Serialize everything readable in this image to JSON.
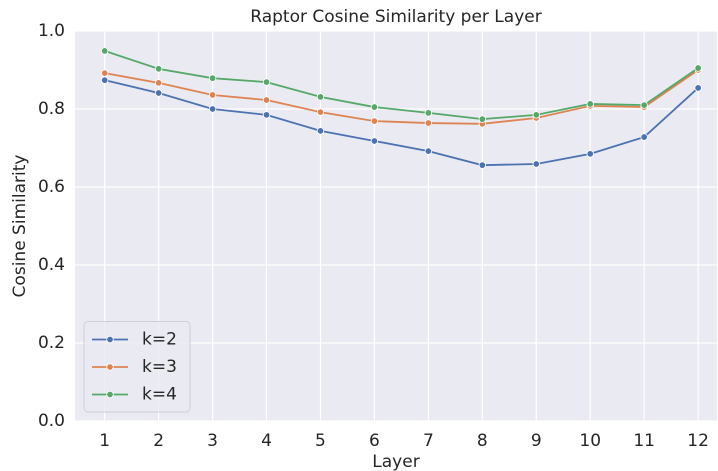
{
  "chart_data": {
    "type": "line",
    "title": "Raptor Cosine Similarity per Layer",
    "xlabel": "Layer",
    "ylabel": "Cosine Similarity",
    "x": [
      1,
      2,
      3,
      4,
      5,
      6,
      7,
      8,
      9,
      10,
      11,
      12
    ],
    "series": [
      {
        "name": "k=2",
        "color": "#4c72b0",
        "values": [
          0.874,
          0.841,
          0.8,
          0.785,
          0.744,
          0.718,
          0.692,
          0.656,
          0.659,
          0.685,
          0.728,
          0.854
        ]
      },
      {
        "name": "k=3",
        "color": "#dd8452",
        "values": [
          0.892,
          0.867,
          0.836,
          0.823,
          0.792,
          0.769,
          0.764,
          0.762,
          0.777,
          0.808,
          0.805,
          0.9
        ]
      },
      {
        "name": "k=4",
        "color": "#55a868",
        "values": [
          0.949,
          0.903,
          0.879,
          0.869,
          0.831,
          0.805,
          0.79,
          0.774,
          0.785,
          0.813,
          0.81,
          0.905
        ]
      }
    ],
    "xlim": [
      0.45,
      12.35
    ],
    "xticks": [
      1,
      2,
      3,
      4,
      5,
      6,
      7,
      8,
      9,
      10,
      11,
      12
    ],
    "ylim": [
      0,
      1
    ],
    "yticks": [
      {
        "value": 0,
        "label": "0.0"
      },
      0.2,
      0.4,
      0.6,
      0.8,
      {
        "value": 1,
        "label": "1.0"
      }
    ],
    "grid": true,
    "legend": "lower left"
  }
}
